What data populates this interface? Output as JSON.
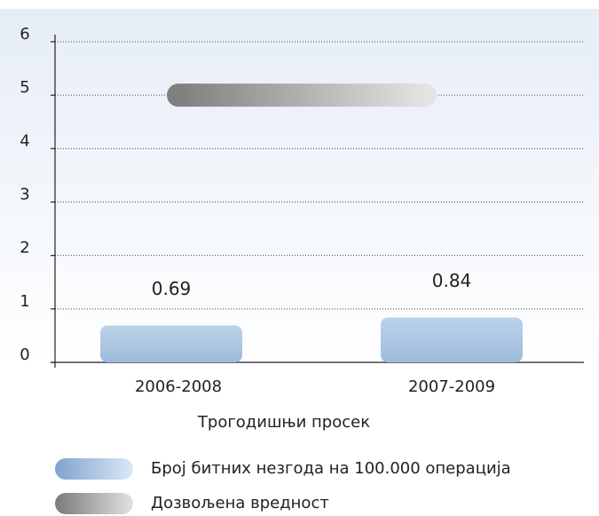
{
  "chart_data": {
    "type": "bar",
    "x_label": "Трогодишњи просек",
    "categories": [
      "2006-2008",
      "2007-2009"
    ],
    "series": [
      {
        "name": "Број битних незгода на 100.000 операција",
        "color": "#a9c4e2",
        "values": [
          0.69,
          0.84
        ]
      },
      {
        "name": "Дозвољена вредност",
        "color": "#9a9a9a",
        "values": [
          5,
          5
        ]
      }
    ],
    "ylim": [
      0,
      6
    ],
    "yticks": [
      0,
      1,
      2,
      3,
      4,
      5,
      6
    ],
    "grid": true,
    "legend": "bottom"
  }
}
